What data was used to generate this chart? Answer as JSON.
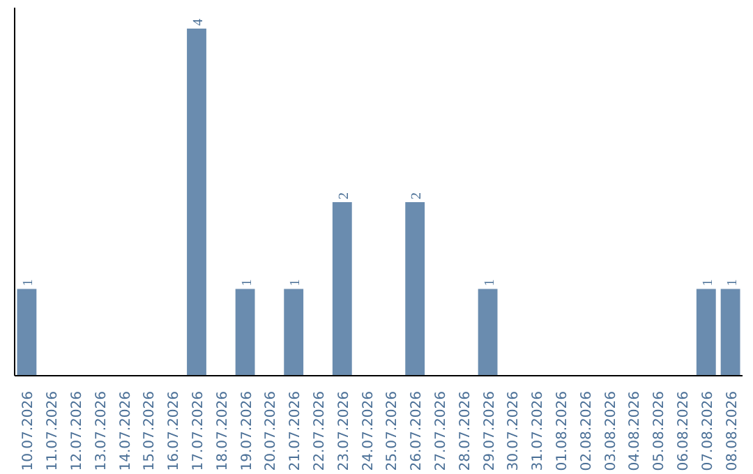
{
  "chart_data": {
    "type": "bar",
    "categories": [
      "10.07.2026",
      "11.07.2026",
      "12.07.2026",
      "13.07.2026",
      "14.07.2026",
      "15.07.2026",
      "16.07.2026",
      "17.07.2026",
      "18.07.2026",
      "19.07.2026",
      "20.07.2026",
      "21.07.2026",
      "22.07.2026",
      "23.07.2026",
      "24.07.2026",
      "25.07.2026",
      "26.07.2026",
      "27.07.2026",
      "28.07.2026",
      "29.07.2026",
      "30.07.2026",
      "31.07.2026",
      "01.08.2026",
      "02.08.2026",
      "03.08.2026",
      "04.08.2026",
      "05.08.2026",
      "06.08.2026",
      "07.08.2026",
      "08.08.2026"
    ],
    "values": [
      1,
      0,
      0,
      0,
      0,
      0,
      0,
      4,
      0,
      1,
      0,
      1,
      0,
      2,
      0,
      0,
      2,
      0,
      0,
      1,
      0,
      0,
      0,
      0,
      0,
      0,
      0,
      0,
      1,
      1
    ],
    "value_labels": [
      "1",
      null,
      null,
      null,
      null,
      null,
      null,
      "4",
      null,
      "1",
      null,
      "1",
      null,
      "2",
      null,
      null,
      "2",
      null,
      null,
      "1",
      null,
      null,
      null,
      null,
      null,
      null,
      null,
      null,
      "1",
      "1"
    ],
    "color": "#6a8caf"
  }
}
